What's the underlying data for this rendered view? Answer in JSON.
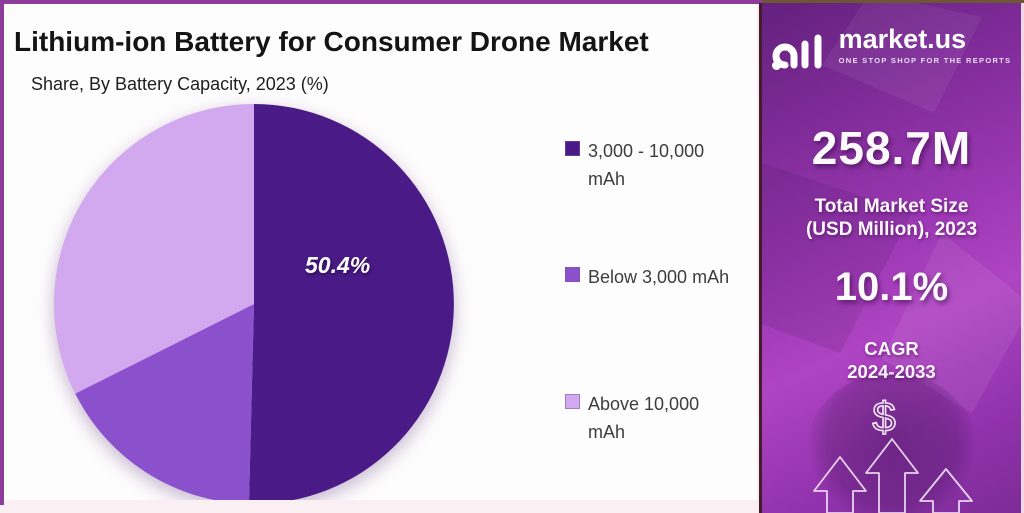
{
  "header": {
    "title": "Lithium-ion Battery for Consumer Drone Market",
    "subtitle": "Share, By Battery Capacity, 2023 (%)"
  },
  "chart_data": {
    "type": "pie",
    "title": "Lithium-ion Battery for Consumer Drone Market",
    "subtitle": "Share, By Battery Capacity, 2023 (%)",
    "unit": "%",
    "year": "2023",
    "start_angle_deg": 0,
    "direction": "clockwise",
    "legend_position": "right",
    "slices": [
      {
        "label": "3,000 - 10,000 mAh",
        "legend_display": "3,000 - 10,000\nmAh",
        "value": 50.4,
        "data_label": "50.4%",
        "color": "#4A1A87"
      },
      {
        "label": "Below 3,000 mAh",
        "legend_display": "Below 3,000 mAh",
        "value": 17.2,
        "data_label": "",
        "color": "#8B51CD"
      },
      {
        "label": "Above 10,000 mAh",
        "legend_display": "Above 10,000\nmAh",
        "value": 32.4,
        "data_label": "",
        "color": "#D2A8EF"
      }
    ]
  },
  "sidebar": {
    "brand": {
      "name": "market.us",
      "tagline": "ONE STOP SHOP FOR THE REPORTS"
    },
    "market_size_value": "258.7M",
    "market_size_label": "Total Market Size\n(USD Million), 2023",
    "cagr_value": "10.1%",
    "cagr_label": "CAGR\n2024-2033",
    "dollar_symbol": "$"
  },
  "colors": {
    "frame_border": "#8C3C99",
    "panel_background": "#FEFDFD",
    "legend_text": "#3D3D3D",
    "title_text": "#141414",
    "sidebar_gradient_start": "#63217D",
    "sidebar_gradient_mid": "#AF44C2",
    "sidebar_gradient_end": "#7C2C97",
    "slice_dark": "#4A1A87",
    "slice_medium": "#8B51CD",
    "slice_light": "#D2A8EF"
  }
}
